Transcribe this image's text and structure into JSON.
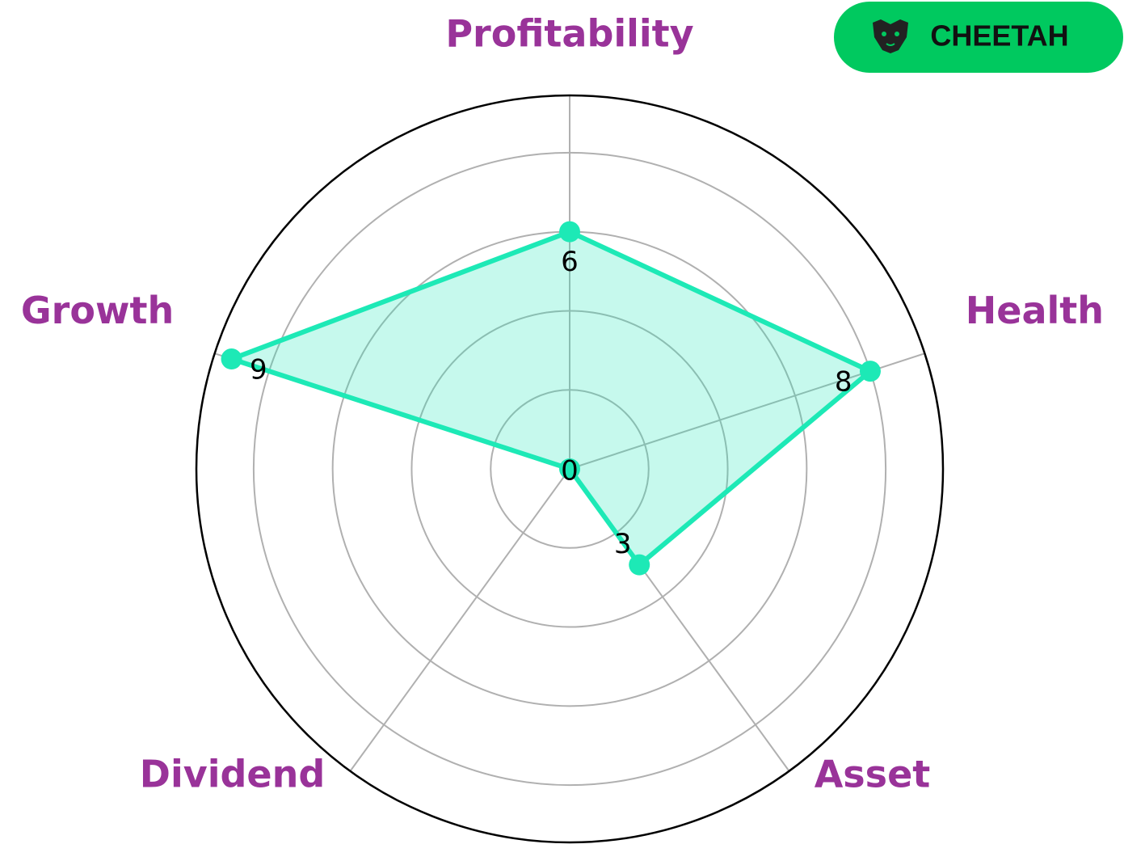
{
  "chart_data": {
    "type": "radar",
    "categories": [
      "Profitability",
      "Health",
      "Asset",
      "Dividend",
      "Growth"
    ],
    "values": [
      6,
      8,
      3,
      0,
      9
    ],
    "color": "#1de9b6",
    "ylim": [
      0,
      9.45
    ],
    "yticks": [
      2,
      4,
      6,
      8
    ],
    "grid": true
  },
  "badge": {
    "label": "CHEETAH"
  }
}
